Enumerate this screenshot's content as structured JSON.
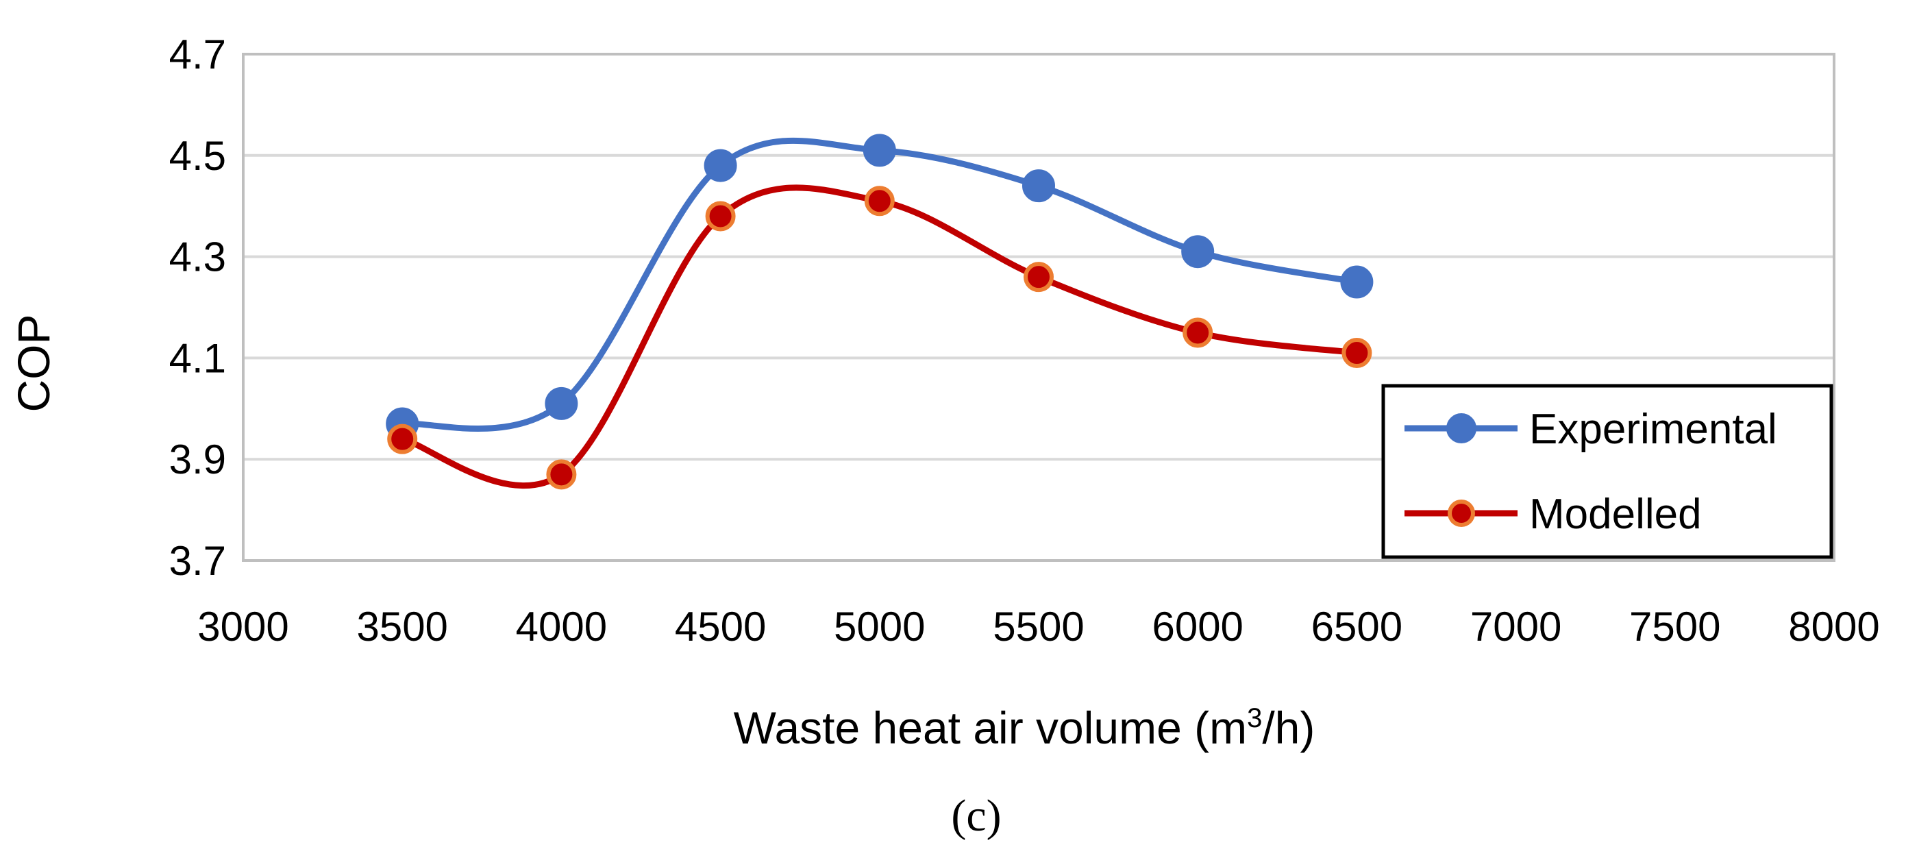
{
  "chart_data": {
    "type": "line",
    "title": "",
    "xlabel": {
      "main": "Waste heat air volume (m",
      "sup": "3",
      "tail": "/h)"
    },
    "ylabel": "COP",
    "xlim": [
      3000,
      8000
    ],
    "ylim": [
      3.7,
      4.7
    ],
    "xticks": [
      3000,
      3500,
      4000,
      4500,
      5000,
      5500,
      6000,
      6500,
      7000,
      7500,
      8000
    ],
    "xtick_labels": [
      "3000",
      "3500",
      "4000",
      "4500",
      "5000",
      "5500",
      "6000",
      "6500",
      "7000",
      "7500",
      "8000"
    ],
    "yticks": [
      3.7,
      3.9,
      4.1,
      4.3,
      4.5,
      4.7
    ],
    "ytick_labels": [
      "3.7",
      "3.9",
      "4.1",
      "4.3",
      "4.5",
      "4.7"
    ],
    "grid": "horizontal",
    "legend_position": "bottom-right",
    "smooth": true,
    "x": [
      3500,
      4000,
      4500,
      5000,
      5500,
      6000,
      6500
    ],
    "series": [
      {
        "name": "Experimental",
        "values": [
          3.97,
          4.01,
          4.48,
          4.51,
          4.44,
          4.31,
          4.25
        ],
        "color": "#4472C4",
        "marker_fill": "#4472C4",
        "marker_edge": "#4472C4"
      },
      {
        "name": "Modelled",
        "values": [
          3.94,
          3.87,
          4.38,
          4.41,
          4.26,
          4.15,
          4.11
        ],
        "color": "#C00000",
        "marker_fill": "#C00000",
        "marker_edge": "#ED7D31"
      }
    ],
    "panel_label": "(c)"
  }
}
